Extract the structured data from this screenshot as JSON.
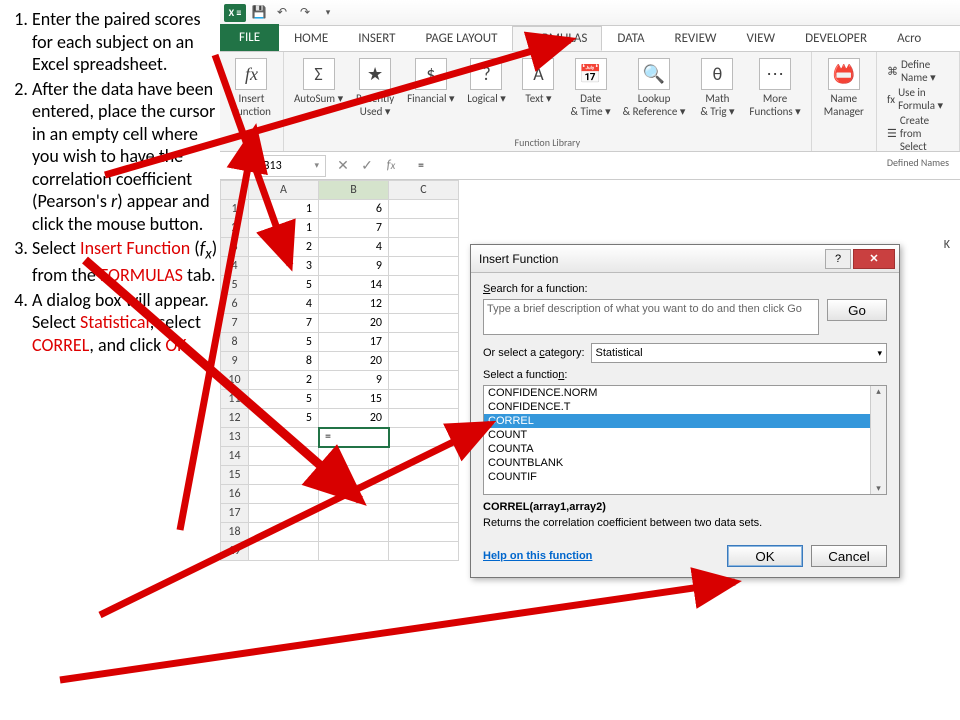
{
  "instructions": [
    {
      "n": "1.",
      "text": "Enter the paired scores for each subject on an Excel spreadsheet."
    },
    {
      "n": "2.",
      "text": "After the data have been entered, place the cursor in an empty cell where you wish to have the correlation coefficient (Pearson's <i>r</i>) appear and click the mouse button."
    },
    {
      "n": "3.",
      "html": "Select <span class='red'>Insert Function</span> (<i>f<sub>x</sub></i>) from the <span class='red'>FORMULAS</span> tab."
    },
    {
      "n": "4.",
      "html": "A dialog box will appear. Select <span class='red'>Statistical</span>, select <span class='red'>CORREL</span>, and click <span class='red'>OK</span>."
    }
  ],
  "ribbon_tabs": [
    "FILE",
    "HOME",
    "INSERT",
    "PAGE LAYOUT",
    "FORMULAS",
    "DATA",
    "REVIEW",
    "VIEW",
    "DEVELOPER",
    "Acro"
  ],
  "active_tab": "FORMULAS",
  "ribbon": {
    "insert_fn": "Insert Function",
    "library": [
      "AutoSum",
      "Recently Used",
      "Financial",
      "Logical",
      "Text",
      "Date & Time",
      "Lookup & Reference",
      "Math & Trig",
      "More Functions"
    ],
    "lib_label": "Function Library",
    "name_mgr": "Name Manager",
    "defnames": [
      "Define Name",
      "Use in Formula",
      "Create from Select"
    ],
    "defnames_label": "Defined Names"
  },
  "namebox": "B13",
  "fx_value": "=",
  "columns": [
    "A",
    "B",
    "C"
  ],
  "data_rows": [
    [
      "1",
      "6"
    ],
    [
      "1",
      "7"
    ],
    [
      "2",
      "4"
    ],
    [
      "3",
      "9"
    ],
    [
      "5",
      "14"
    ],
    [
      "4",
      "12"
    ],
    [
      "7",
      "20"
    ],
    [
      "5",
      "17"
    ],
    [
      "8",
      "20"
    ],
    [
      "2",
      "9"
    ],
    [
      "5",
      "15"
    ],
    [
      "5",
      "20"
    ]
  ],
  "active_cell_row": 13,
  "active_cell_col": "B",
  "active_cell_val": "=",
  "extra_cols": [
    "K"
  ],
  "dialog": {
    "title": "Insert Function",
    "search_lbl": "Search for a function:",
    "search_txt": "Type a brief description of what you want to do and then click Go",
    "go": "Go",
    "cat_lbl": "Or select a category:",
    "cat_val": "Statistical",
    "sel_lbl": "Select a function:",
    "list": [
      "CONFIDENCE.NORM",
      "CONFIDENCE.T",
      "CORREL",
      "COUNT",
      "COUNTA",
      "COUNTBLANK",
      "COUNTIF"
    ],
    "selected": "CORREL",
    "syntax": "CORREL(array1,array2)",
    "desc": "Returns the correlation coefficient between two data sets.",
    "help": "Help on this function",
    "ok": "OK",
    "cancel": "Cancel"
  },
  "colors": {
    "green": "#217346",
    "red": "#cc0000",
    "blue_sel": "#3497db"
  }
}
